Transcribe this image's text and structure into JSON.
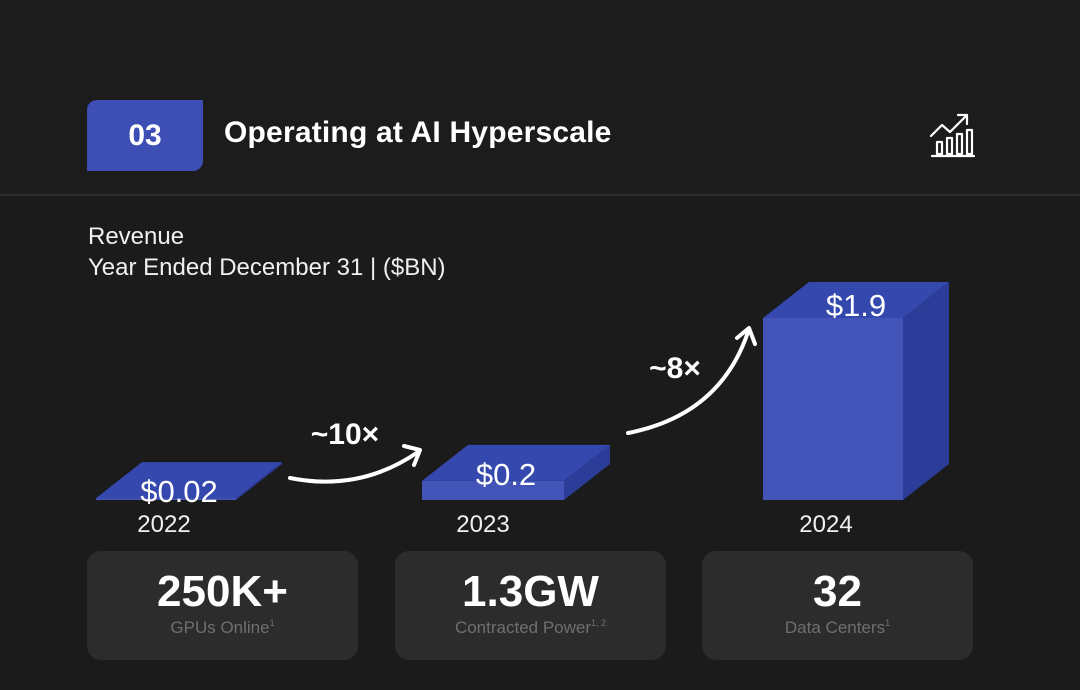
{
  "header": {
    "section_number": "03",
    "title": "Operating at AI Hyperscale",
    "icon": "growth-chart-icon"
  },
  "colors": {
    "background": "#1b1b1b",
    "accent": "#3d4fb5",
    "bar_front": "#4254b8",
    "bar_top": "#3548ae",
    "bar_side": "#2c3c99",
    "card": "#2c2c2c",
    "card_label": "#6f6f6f"
  },
  "chart_data": {
    "type": "bar",
    "title": "Revenue",
    "subtitle": "Year Ended December 31 | ($BN)",
    "categories": [
      "2022",
      "2023",
      "2024"
    ],
    "values": [
      0.02,
      0.2,
      1.9
    ],
    "value_labels": [
      "$0.02",
      "$0.2",
      "$1.9"
    ],
    "annotations": [
      {
        "from": "2022",
        "to": "2023",
        "text": "~10×"
      },
      {
        "from": "2023",
        "to": "2024",
        "text": "~8×"
      }
    ]
  },
  "stats": [
    {
      "value": "250K+",
      "label": "GPUs Online",
      "sup": "1"
    },
    {
      "value": "1.3GW",
      "label": "Contracted Power",
      "sup": "1, 2"
    },
    {
      "value": "32",
      "label": "Data Centers",
      "sup": "1"
    }
  ]
}
